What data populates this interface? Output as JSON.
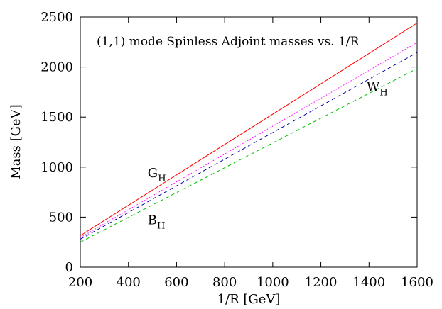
{
  "chart_data": {
    "type": "line",
    "title": "(1,1) mode Spinless Adjoint masses vs. 1/R",
    "xlabel": "1/R [GeV]",
    "ylabel": "Mass [GeV]",
    "xlim": [
      200,
      1600
    ],
    "ylim": [
      0,
      2500
    ],
    "xticks": [
      200,
      400,
      600,
      800,
      1000,
      1200,
      1400,
      1600
    ],
    "yticks": [
      0,
      500,
      1000,
      1500,
      2000,
      2500
    ],
    "grid": false,
    "legend": "none",
    "series": [
      {
        "color": "#ff0000",
        "dash": "solid",
        "x": [
          200,
          1600
        ],
        "y": [
          315,
          2440
        ]
      },
      {
        "color": "#ff00ff",
        "dash": "dotted",
        "x": [
          200,
          1600
        ],
        "y": [
          295,
          2245
        ]
      },
      {
        "color": "#0000a0",
        "dash": "dashed",
        "x": [
          200,
          1600
        ],
        "y": [
          280,
          2145
        ]
      },
      {
        "color": "#00c000",
        "dash": "dashed",
        "x": [
          200,
          1600
        ],
        "y": [
          250,
          1985
        ]
      }
    ],
    "annotations": [
      {
        "main": "G",
        "sub": "H",
        "x": 480,
        "y": 900
      },
      {
        "main": "B",
        "sub": "H",
        "x": 480,
        "y": 430
      },
      {
        "main": "W",
        "sub": "H",
        "x": 1390,
        "y": 1760
      }
    ]
  }
}
